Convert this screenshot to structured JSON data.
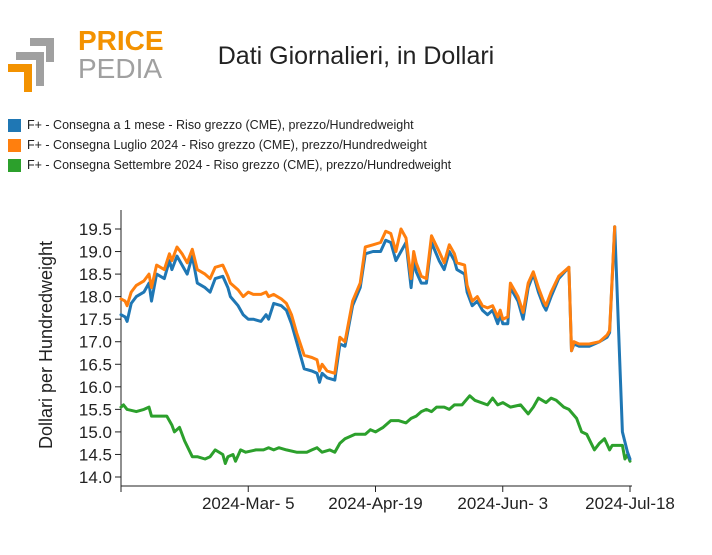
{
  "logo": {
    "word1": "PRICE",
    "word2": "PEDIA",
    "accent_color": "#f39200",
    "grey_color": "#a0a0a0"
  },
  "chart_data": {
    "type": "line",
    "title": "Dati Giornalieri, in Dollari",
    "ylabel": "Dollari per Hundredweight",
    "xlabel": "",
    "ylim": [
      14.0,
      19.5
    ],
    "yticks": [
      "14.0",
      "14.5",
      "15.0",
      "15.5",
      "16.0",
      "16.5",
      "17.0",
      "17.5",
      "18.0",
      "18.5",
      "19.0",
      "19.5"
    ],
    "xticks": [
      {
        "label": "2024-Mar- 5",
        "t": 0.25
      },
      {
        "label": "2024-Apr-19",
        "t": 0.5
      },
      {
        "label": "2024-Jun- 3",
        "t": 0.75
      },
      {
        "label": "2024-Jul-18",
        "t": 1.0
      }
    ],
    "legend_position": "top-left",
    "series": [
      {
        "name": "F+ - Consegna a 1 mese - Riso grezzo (CME), prezzo/Hundredweight",
        "color": "#1f77b4",
        "points": [
          [
            0,
            17.6
          ],
          [
            0.008,
            17.55
          ],
          [
            0.012,
            17.45
          ],
          [
            0.02,
            17.85
          ],
          [
            0.03,
            18.0
          ],
          [
            0.045,
            18.1
          ],
          [
            0.055,
            18.3
          ],
          [
            0.06,
            17.9
          ],
          [
            0.07,
            18.5
          ],
          [
            0.085,
            18.4
          ],
          [
            0.095,
            18.8
          ],
          [
            0.1,
            18.6
          ],
          [
            0.11,
            18.9
          ],
          [
            0.12,
            18.7
          ],
          [
            0.13,
            18.5
          ],
          [
            0.14,
            18.9
          ],
          [
            0.15,
            18.3
          ],
          [
            0.165,
            18.2
          ],
          [
            0.175,
            18.1
          ],
          [
            0.185,
            18.4
          ],
          [
            0.2,
            18.45
          ],
          [
            0.21,
            18.2
          ],
          [
            0.215,
            18.0
          ],
          [
            0.23,
            17.8
          ],
          [
            0.24,
            17.6
          ],
          [
            0.25,
            17.5
          ],
          [
            0.26,
            17.5
          ],
          [
            0.275,
            17.45
          ],
          [
            0.285,
            17.6
          ],
          [
            0.29,
            17.5
          ],
          [
            0.3,
            17.85
          ],
          [
            0.315,
            17.8
          ],
          [
            0.325,
            17.7
          ],
          [
            0.335,
            17.4
          ],
          [
            0.345,
            17.0
          ],
          [
            0.36,
            16.4
          ],
          [
            0.375,
            16.35
          ],
          [
            0.385,
            16.3
          ],
          [
            0.39,
            16.1
          ],
          [
            0.395,
            16.3
          ],
          [
            0.405,
            16.2
          ],
          [
            0.42,
            16.15
          ],
          [
            0.43,
            16.95
          ],
          [
            0.44,
            16.9
          ],
          [
            0.455,
            17.8
          ],
          [
            0.47,
            18.2
          ],
          [
            0.48,
            18.95
          ],
          [
            0.495,
            19.0
          ],
          [
            0.51,
            19.0
          ],
          [
            0.52,
            19.25
          ],
          [
            0.53,
            19.2
          ],
          [
            0.54,
            18.8
          ],
          [
            0.55,
            19.0
          ],
          [
            0.56,
            19.2
          ],
          [
            0.57,
            18.2
          ],
          [
            0.575,
            18.8
          ],
          [
            0.58,
            18.55
          ],
          [
            0.59,
            18.3
          ],
          [
            0.6,
            18.3
          ],
          [
            0.61,
            19.2
          ],
          [
            0.625,
            18.8
          ],
          [
            0.635,
            18.6
          ],
          [
            0.645,
            19.0
          ],
          [
            0.655,
            18.8
          ],
          [
            0.66,
            18.6
          ],
          [
            0.675,
            18.5
          ],
          [
            0.68,
            18.1
          ],
          [
            0.69,
            17.8
          ],
          [
            0.7,
            17.9
          ],
          [
            0.71,
            17.7
          ],
          [
            0.72,
            17.6
          ],
          [
            0.73,
            17.7
          ],
          [
            0.74,
            17.4
          ],
          [
            0.745,
            17.6
          ],
          [
            0.75,
            17.4
          ],
          [
            0.76,
            17.4
          ],
          [
            0.765,
            18.2
          ],
          [
            0.78,
            17.9
          ],
          [
            0.79,
            17.5
          ],
          [
            0.8,
            18.2
          ],
          [
            0.81,
            18.5
          ],
          [
            0.82,
            18.1
          ],
          [
            0.83,
            17.8
          ],
          [
            0.835,
            17.7
          ],
          [
            0.845,
            18.0
          ],
          [
            0.86,
            18.4
          ],
          [
            0.88,
            18.65
          ],
          [
            0.885,
            16.8
          ],
          [
            0.89,
            16.95
          ],
          [
            0.9,
            16.9
          ],
          [
            0.91,
            16.9
          ],
          [
            0.92,
            16.9
          ],
          [
            0.94,
            17.0
          ],
          [
            0.955,
            17.1
          ],
          [
            0.96,
            17.2
          ],
          [
            0.97,
            19.55
          ],
          [
            0.985,
            15.0
          ],
          [
            0.995,
            14.55
          ],
          [
            1.0,
            14.4
          ]
        ]
      },
      {
        "name": "F+ - Consegna Luglio 2024 - Riso grezzo (CME), prezzo/Hundredweight",
        "color": "#ff7f0e",
        "points": [
          [
            0,
            17.95
          ],
          [
            0.008,
            17.9
          ],
          [
            0.012,
            17.8
          ],
          [
            0.02,
            18.1
          ],
          [
            0.03,
            18.25
          ],
          [
            0.045,
            18.35
          ],
          [
            0.055,
            18.5
          ],
          [
            0.06,
            18.2
          ],
          [
            0.07,
            18.7
          ],
          [
            0.085,
            18.6
          ],
          [
            0.095,
            18.95
          ],
          [
            0.1,
            18.8
          ],
          [
            0.11,
            19.1
          ],
          [
            0.12,
            18.95
          ],
          [
            0.13,
            18.75
          ],
          [
            0.14,
            19.05
          ],
          [
            0.15,
            18.6
          ],
          [
            0.165,
            18.5
          ],
          [
            0.175,
            18.4
          ],
          [
            0.185,
            18.65
          ],
          [
            0.2,
            18.7
          ],
          [
            0.21,
            18.45
          ],
          [
            0.215,
            18.3
          ],
          [
            0.23,
            18.15
          ],
          [
            0.24,
            18.0
          ],
          [
            0.25,
            18.1
          ],
          [
            0.26,
            18.05
          ],
          [
            0.275,
            18.05
          ],
          [
            0.285,
            18.1
          ],
          [
            0.29,
            18.0
          ],
          [
            0.3,
            18.05
          ],
          [
            0.315,
            17.95
          ],
          [
            0.325,
            17.85
          ],
          [
            0.335,
            17.6
          ],
          [
            0.345,
            17.2
          ],
          [
            0.36,
            16.7
          ],
          [
            0.375,
            16.65
          ],
          [
            0.385,
            16.6
          ],
          [
            0.39,
            16.35
          ],
          [
            0.395,
            16.5
          ],
          [
            0.405,
            16.35
          ],
          [
            0.42,
            16.3
          ],
          [
            0.43,
            17.1
          ],
          [
            0.44,
            17.0
          ],
          [
            0.455,
            17.9
          ],
          [
            0.47,
            18.3
          ],
          [
            0.48,
            19.1
          ],
          [
            0.495,
            19.15
          ],
          [
            0.51,
            19.2
          ],
          [
            0.52,
            19.45
          ],
          [
            0.53,
            19.4
          ],
          [
            0.54,
            19.0
          ],
          [
            0.55,
            19.5
          ],
          [
            0.56,
            19.3
          ],
          [
            0.57,
            18.4
          ],
          [
            0.575,
            19.0
          ],
          [
            0.58,
            18.75
          ],
          [
            0.59,
            18.45
          ],
          [
            0.6,
            18.4
          ],
          [
            0.61,
            19.35
          ],
          [
            0.625,
            19.0
          ],
          [
            0.635,
            18.75
          ],
          [
            0.645,
            19.15
          ],
          [
            0.655,
            18.95
          ],
          [
            0.66,
            18.75
          ],
          [
            0.675,
            18.7
          ],
          [
            0.68,
            18.25
          ],
          [
            0.69,
            17.9
          ],
          [
            0.7,
            18.0
          ],
          [
            0.71,
            17.8
          ],
          [
            0.72,
            17.75
          ],
          [
            0.73,
            17.8
          ],
          [
            0.74,
            17.55
          ],
          [
            0.745,
            17.7
          ],
          [
            0.75,
            17.5
          ],
          [
            0.76,
            17.55
          ],
          [
            0.765,
            18.3
          ],
          [
            0.78,
            18.0
          ],
          [
            0.79,
            17.65
          ],
          [
            0.8,
            18.3
          ],
          [
            0.81,
            18.55
          ],
          [
            0.82,
            18.2
          ],
          [
            0.83,
            17.9
          ],
          [
            0.835,
            17.8
          ],
          [
            0.845,
            18.1
          ],
          [
            0.86,
            18.45
          ],
          [
            0.88,
            18.65
          ],
          [
            0.885,
            16.8
          ],
          [
            0.89,
            17.0
          ],
          [
            0.9,
            16.95
          ],
          [
            0.91,
            16.95
          ],
          [
            0.92,
            16.95
          ],
          [
            0.94,
            17.0
          ],
          [
            0.955,
            17.15
          ],
          [
            0.96,
            17.25
          ],
          [
            0.97,
            19.55
          ]
        ]
      },
      {
        "name": "F+ - Consegna Settembre 2024 - Riso grezzo (CME), prezzo/Hundredweight",
        "color": "#2ca02c",
        "points": [
          [
            0,
            15.55
          ],
          [
            0.005,
            15.6
          ],
          [
            0.012,
            15.5
          ],
          [
            0.03,
            15.45
          ],
          [
            0.045,
            15.5
          ],
          [
            0.055,
            15.55
          ],
          [
            0.06,
            15.35
          ],
          [
            0.075,
            15.35
          ],
          [
            0.09,
            15.35
          ],
          [
            0.1,
            15.15
          ],
          [
            0.105,
            15.0
          ],
          [
            0.115,
            15.1
          ],
          [
            0.125,
            14.8
          ],
          [
            0.14,
            14.45
          ],
          [
            0.15,
            14.45
          ],
          [
            0.165,
            14.4
          ],
          [
            0.175,
            14.45
          ],
          [
            0.185,
            14.6
          ],
          [
            0.2,
            14.5
          ],
          [
            0.205,
            14.3
          ],
          [
            0.21,
            14.45
          ],
          [
            0.22,
            14.5
          ],
          [
            0.225,
            14.35
          ],
          [
            0.235,
            14.6
          ],
          [
            0.245,
            14.55
          ],
          [
            0.265,
            14.6
          ],
          [
            0.28,
            14.6
          ],
          [
            0.29,
            14.65
          ],
          [
            0.3,
            14.6
          ],
          [
            0.31,
            14.65
          ],
          [
            0.325,
            14.6
          ],
          [
            0.345,
            14.55
          ],
          [
            0.365,
            14.55
          ],
          [
            0.375,
            14.6
          ],
          [
            0.385,
            14.65
          ],
          [
            0.395,
            14.55
          ],
          [
            0.41,
            14.6
          ],
          [
            0.42,
            14.55
          ],
          [
            0.43,
            14.75
          ],
          [
            0.44,
            14.85
          ],
          [
            0.46,
            14.95
          ],
          [
            0.48,
            14.95
          ],
          [
            0.49,
            15.05
          ],
          [
            0.5,
            15.0
          ],
          [
            0.515,
            15.1
          ],
          [
            0.53,
            15.25
          ],
          [
            0.545,
            15.25
          ],
          [
            0.56,
            15.2
          ],
          [
            0.57,
            15.3
          ],
          [
            0.58,
            15.35
          ],
          [
            0.59,
            15.45
          ],
          [
            0.6,
            15.5
          ],
          [
            0.61,
            15.45
          ],
          [
            0.62,
            15.55
          ],
          [
            0.635,
            15.55
          ],
          [
            0.645,
            15.5
          ],
          [
            0.655,
            15.6
          ],
          [
            0.67,
            15.6
          ],
          [
            0.685,
            15.8
          ],
          [
            0.695,
            15.7
          ],
          [
            0.72,
            15.6
          ],
          [
            0.73,
            15.75
          ],
          [
            0.74,
            15.6
          ],
          [
            0.75,
            15.65
          ],
          [
            0.765,
            15.55
          ],
          [
            0.785,
            15.6
          ],
          [
            0.8,
            15.4
          ],
          [
            0.81,
            15.55
          ],
          [
            0.82,
            15.75
          ],
          [
            0.835,
            15.65
          ],
          [
            0.845,
            15.75
          ],
          [
            0.855,
            15.7
          ],
          [
            0.87,
            15.55
          ],
          [
            0.88,
            15.5
          ],
          [
            0.895,
            15.3
          ],
          [
            0.905,
            15.0
          ],
          [
            0.915,
            14.95
          ],
          [
            0.93,
            14.6
          ],
          [
            0.94,
            14.75
          ],
          [
            0.95,
            14.85
          ],
          [
            0.96,
            14.6
          ],
          [
            0.965,
            14.7
          ],
          [
            0.985,
            14.7
          ],
          [
            0.99,
            14.4
          ],
          [
            0.995,
            14.5
          ],
          [
            1.0,
            14.35
          ]
        ]
      }
    ]
  }
}
